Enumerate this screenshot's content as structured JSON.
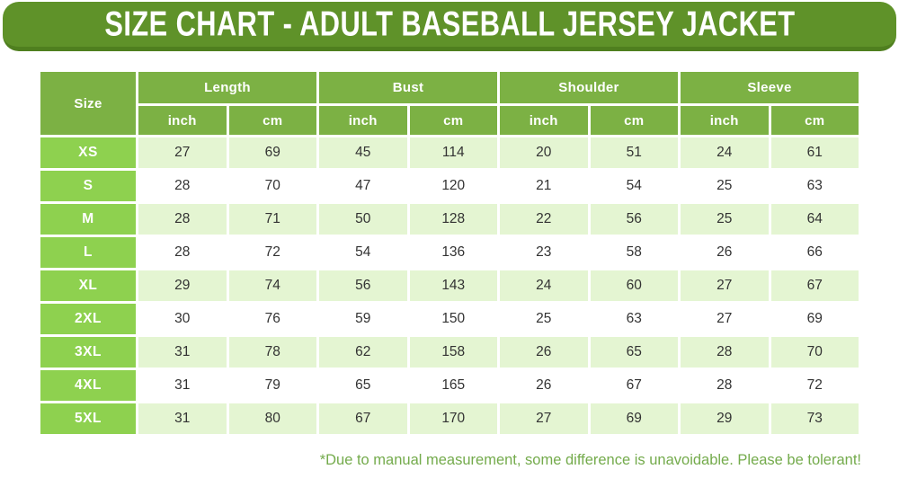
{
  "banner": {
    "title": "SIZE CHART - ADULT BASEBALL JERSEY JACKET"
  },
  "footnote": "*Due to manual measurement, some difference is unavoidable. Please be tolerant!",
  "colors": {
    "banner": "#5f9229",
    "banner_edge": "#4f7f1f",
    "header": "#7cb144",
    "size_cell": "#8ed14f",
    "row_alt": "#e4f5d2",
    "row_plain": "#ffffff",
    "data_text": "#333333",
    "footnote_text": "#74ab4c"
  },
  "chart_data": {
    "type": "table",
    "title": "SIZE CHART - ADULT BASEBALL JERSEY JACKET",
    "size_column_header": "Size",
    "column_groups": [
      "Length",
      "Bust",
      "Shoulder",
      "Sleeve"
    ],
    "unit_columns": [
      "inch",
      "cm",
      "inch",
      "cm",
      "inch",
      "cm",
      "inch",
      "cm"
    ],
    "rows": [
      {
        "size": "XS",
        "values": [
          27,
          69,
          45,
          114,
          20,
          51,
          24,
          61
        ]
      },
      {
        "size": "S",
        "values": [
          28,
          70,
          47,
          120,
          21,
          54,
          25,
          63
        ]
      },
      {
        "size": "M",
        "values": [
          28,
          71,
          50,
          128,
          22,
          56,
          25,
          64
        ]
      },
      {
        "size": "L",
        "values": [
          28,
          72,
          54,
          136,
          23,
          58,
          26,
          66
        ]
      },
      {
        "size": "XL",
        "values": [
          29,
          74,
          56,
          143,
          24,
          60,
          27,
          67
        ]
      },
      {
        "size": "2XL",
        "values": [
          30,
          76,
          59,
          150,
          25,
          63,
          27,
          69
        ]
      },
      {
        "size": "3XL",
        "values": [
          31,
          78,
          62,
          158,
          26,
          65,
          28,
          70
        ]
      },
      {
        "size": "4XL",
        "values": [
          31,
          79,
          65,
          165,
          26,
          67,
          28,
          72
        ]
      },
      {
        "size": "5XL",
        "values": [
          31,
          80,
          67,
          170,
          27,
          69,
          29,
          73
        ]
      }
    ]
  }
}
